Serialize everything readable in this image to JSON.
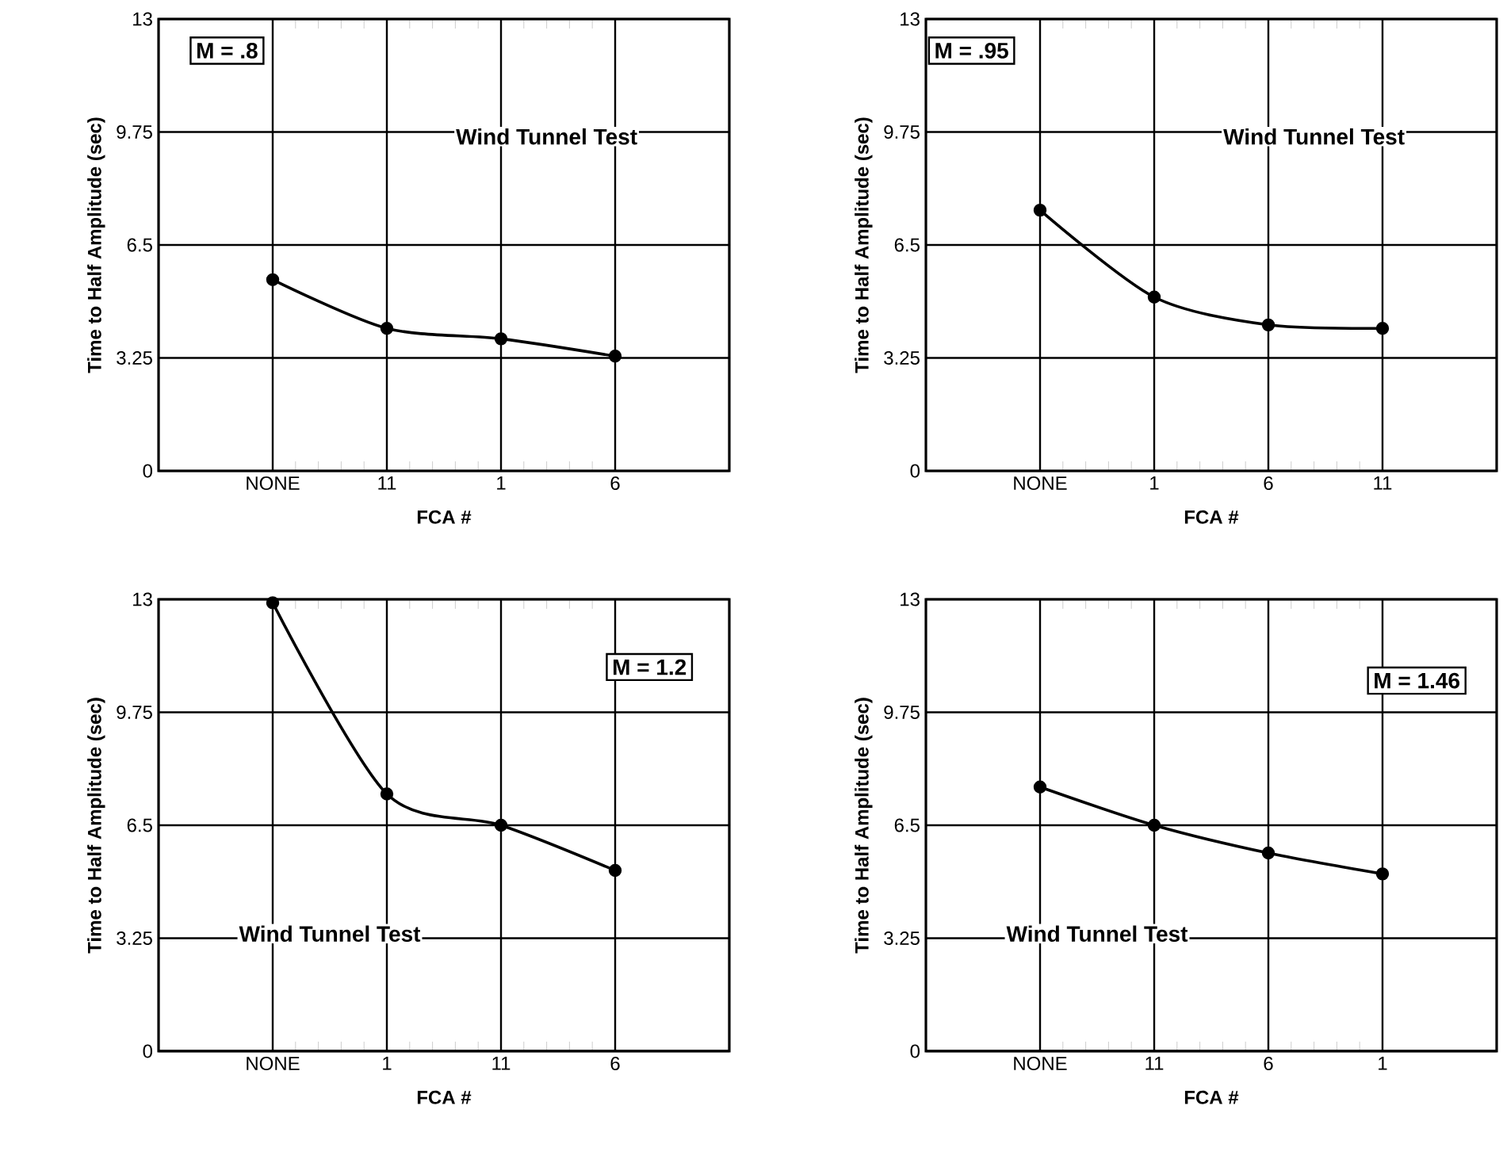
{
  "chart_data": [
    {
      "type": "line",
      "xlabel": "FCA #",
      "ylabel": "Time to Half Amplitude (sec)",
      "categories": [
        "NONE",
        "11",
        "1",
        "6"
      ],
      "values": [
        5.5,
        4.1,
        3.8,
        3.3
      ],
      "color": "#000000",
      "ylim": [
        0,
        13
      ],
      "yticks": [
        0,
        3.25,
        6.5,
        9.75,
        13
      ],
      "grid": true,
      "marker": "circle",
      "annotations": [
        "M = .8",
        "Wind Tunnel Test"
      ]
    },
    {
      "type": "line",
      "xlabel": "FCA #",
      "ylabel": "Time to Half Amplitude (sec)",
      "categories": [
        "NONE",
        "1",
        "6",
        "11"
      ],
      "values": [
        7.5,
        5.0,
        4.2,
        4.1
      ],
      "color": "#000000",
      "ylim": [
        0,
        13
      ],
      "yticks": [
        0,
        3.25,
        6.5,
        9.75,
        13
      ],
      "grid": true,
      "marker": "circle",
      "annotations": [
        "M = .95",
        "Wind Tunnel Test"
      ]
    },
    {
      "type": "line",
      "xlabel": "FCA #",
      "ylabel": "Time to Half Amplitude (sec)",
      "categories": [
        "NONE",
        "1",
        "11",
        "6"
      ],
      "values": [
        12.9,
        7.4,
        6.5,
        5.2
      ],
      "color": "#000000",
      "ylim": [
        0,
        13
      ],
      "yticks": [
        0,
        3.25,
        6.5,
        9.75,
        13
      ],
      "grid": true,
      "marker": "circle",
      "annotations": [
        "M = 1.2",
        "Wind Tunnel Test"
      ]
    },
    {
      "type": "line",
      "xlabel": "FCA #",
      "ylabel": "Time to Half Amplitude (sec)",
      "categories": [
        "NONE",
        "11",
        "6",
        "1"
      ],
      "values": [
        7.6,
        6.5,
        5.7,
        5.1
      ],
      "color": "#000000",
      "ylim": [
        0,
        13
      ],
      "yticks": [
        0,
        3.25,
        6.5,
        9.75,
        13
      ],
      "grid": true,
      "marker": "circle",
      "annotations": [
        "M = 1.46",
        "Wind Tunnel Test"
      ]
    }
  ]
}
